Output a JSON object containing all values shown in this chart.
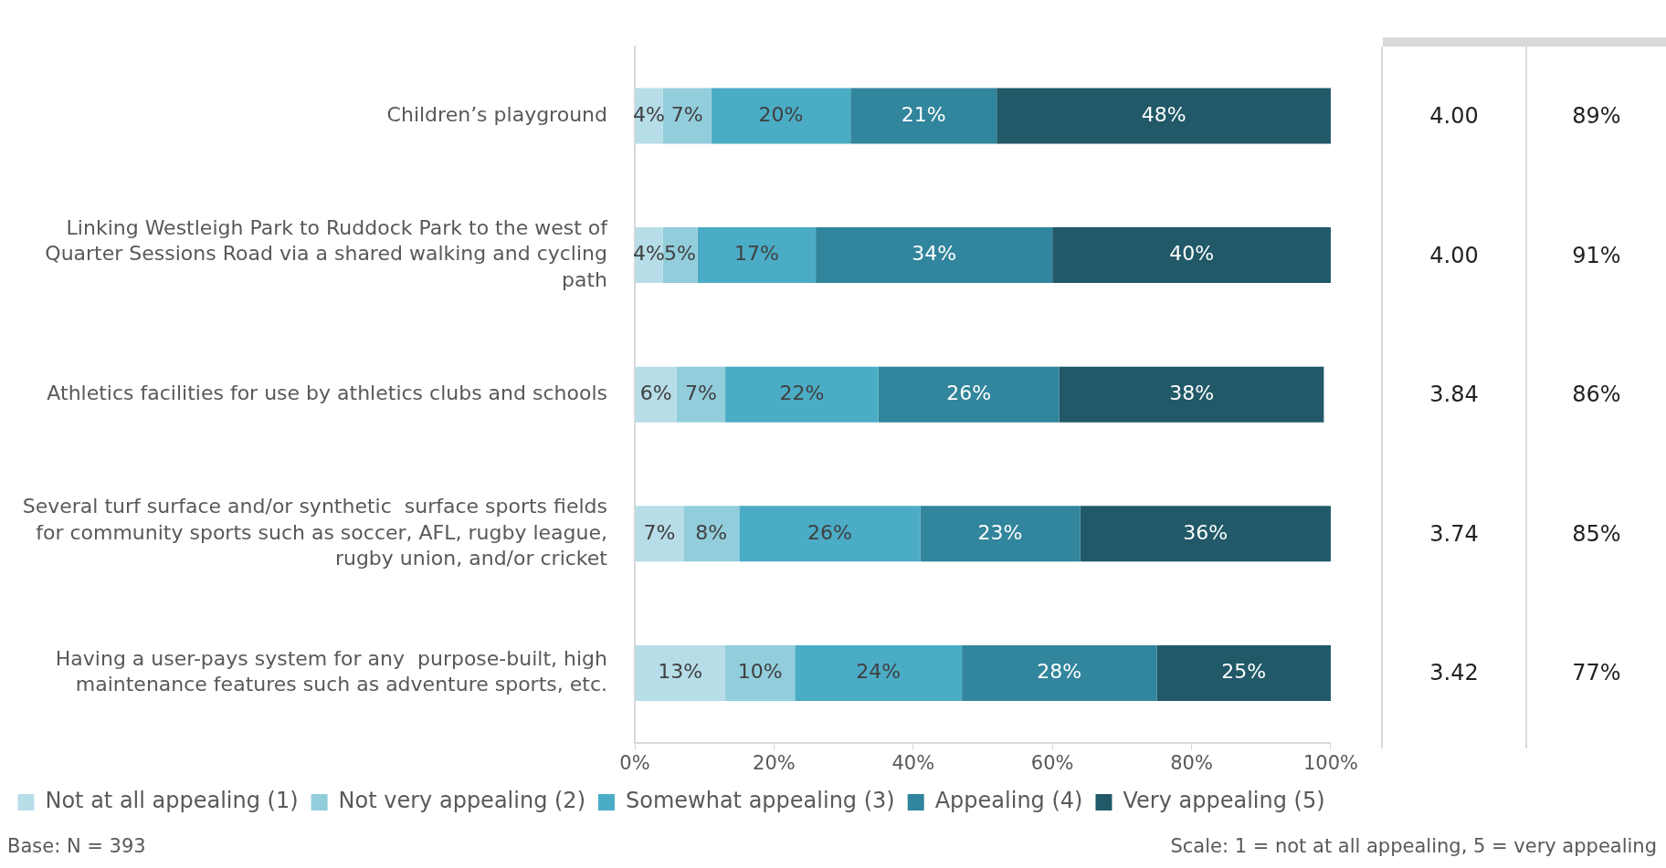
{
  "chart_data": {
    "type": "bar",
    "orientation": "horizontal",
    "stacked": true,
    "categories": [
      "Children’s playground",
      "Linking Westleigh Park to Ruddock Park to the west of Quarter Sessions Road via a shared walking and cycling path",
      "Athletics facilities for use by athletics clubs and schools",
      "Several turf surface and/or synthetic  surface sports fields for community sports such as soccer, AFL, rugby league, rugby union, and/or cricket",
      "Having a user-pays system for any  purpose-built, high maintenance features such as adventure sports, etc."
    ],
    "series": [
      {
        "name": "Not at all appealing (1)",
        "color": "#b7dde8",
        "values": [
          4,
          4,
          6,
          7,
          13
        ],
        "value_labels": [
          "4%",
          "4%",
          "6%",
          "7%",
          "13%"
        ]
      },
      {
        "name": "Not very appealing (2)",
        "color": "#92cddc",
        "values": [
          7,
          5,
          7,
          8,
          10
        ],
        "value_labels": [
          "7%",
          "5%",
          "7%",
          "8%",
          "10%"
        ]
      },
      {
        "name": "Somewhat appealing (3)",
        "color": "#4bacc6",
        "values": [
          20,
          17,
          22,
          26,
          24
        ],
        "value_labels": [
          "20%",
          "17%",
          "22%",
          "26%",
          "24%"
        ]
      },
      {
        "name": "Appealing (4)",
        "color": "#31859c",
        "values": [
          21,
          34,
          26,
          23,
          28
        ],
        "value_labels": [
          "21%",
          "34%",
          "26%",
          "23%",
          "28%"
        ]
      },
      {
        "name": "Very appealing (5)",
        "color": "#215968",
        "values": [
          48,
          40,
          38,
          36,
          25
        ],
        "value_labels": [
          "48%",
          "40%",
          "38%",
          "36%",
          "25%"
        ]
      }
    ],
    "xlim": [
      0,
      100
    ],
    "xticks": [
      {
        "value": 0,
        "label": "0%"
      },
      {
        "value": 20,
        "label": "20%"
      },
      {
        "value": 40,
        "label": "40%"
      },
      {
        "value": 60,
        "label": "60%"
      },
      {
        "value": 80,
        "label": "80%"
      },
      {
        "value": 100,
        "label": "100%"
      }
    ],
    "grid": false,
    "legend": "bottom",
    "annotations": [
      "Base: N = 393",
      "Scale: 1 = not at all appealing, 5 = very appealing",
      "4.00",
      "89%",
      "4.00",
      "91%",
      "3.84",
      "86%",
      "3.74",
      "85%",
      "3.42",
      "77%"
    ]
  }
}
